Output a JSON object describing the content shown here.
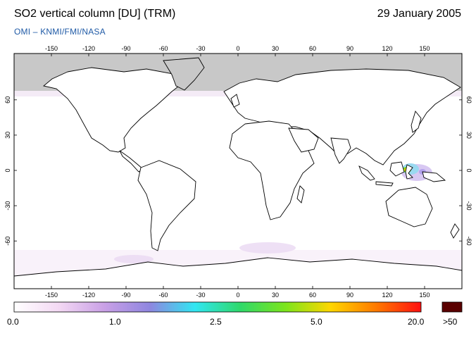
{
  "header": {
    "title": "SO2 vertical column [DU] (TRM)",
    "date": "29 January 2005",
    "source": "OMI  –  KNMI/FMI/NASA"
  },
  "map": {
    "lon_ticks": [
      -150,
      -120,
      -90,
      -60,
      -30,
      0,
      30,
      60,
      90,
      120,
      150
    ],
    "lat_ticks": [
      60,
      30,
      0,
      -30,
      -60
    ],
    "lon_tick_labels": [
      "-150",
      "-120",
      "-90",
      "-60",
      "-30",
      "0",
      "30",
      "60",
      "90",
      "120",
      "150"
    ],
    "lat_tick_labels": [
      "60",
      "30",
      "0",
      "-30",
      "-60"
    ],
    "no_data_color": "#c8c8c8",
    "coastline_color": "#000000"
  },
  "colorbar": {
    "labels": [
      "0.0",
      "1.0",
      "2.5",
      "5.0",
      "20.0"
    ],
    "overflow_label": ">50",
    "overflow_color": "#5a0000",
    "stops": [
      "#ffffff",
      "#f3d8f3",
      "#c9a0e6",
      "#8f86e0",
      "#31e6f2",
      "#2fd96b",
      "#7ce51c",
      "#ffd600",
      "#ff7a00",
      "#ff1010"
    ]
  }
}
